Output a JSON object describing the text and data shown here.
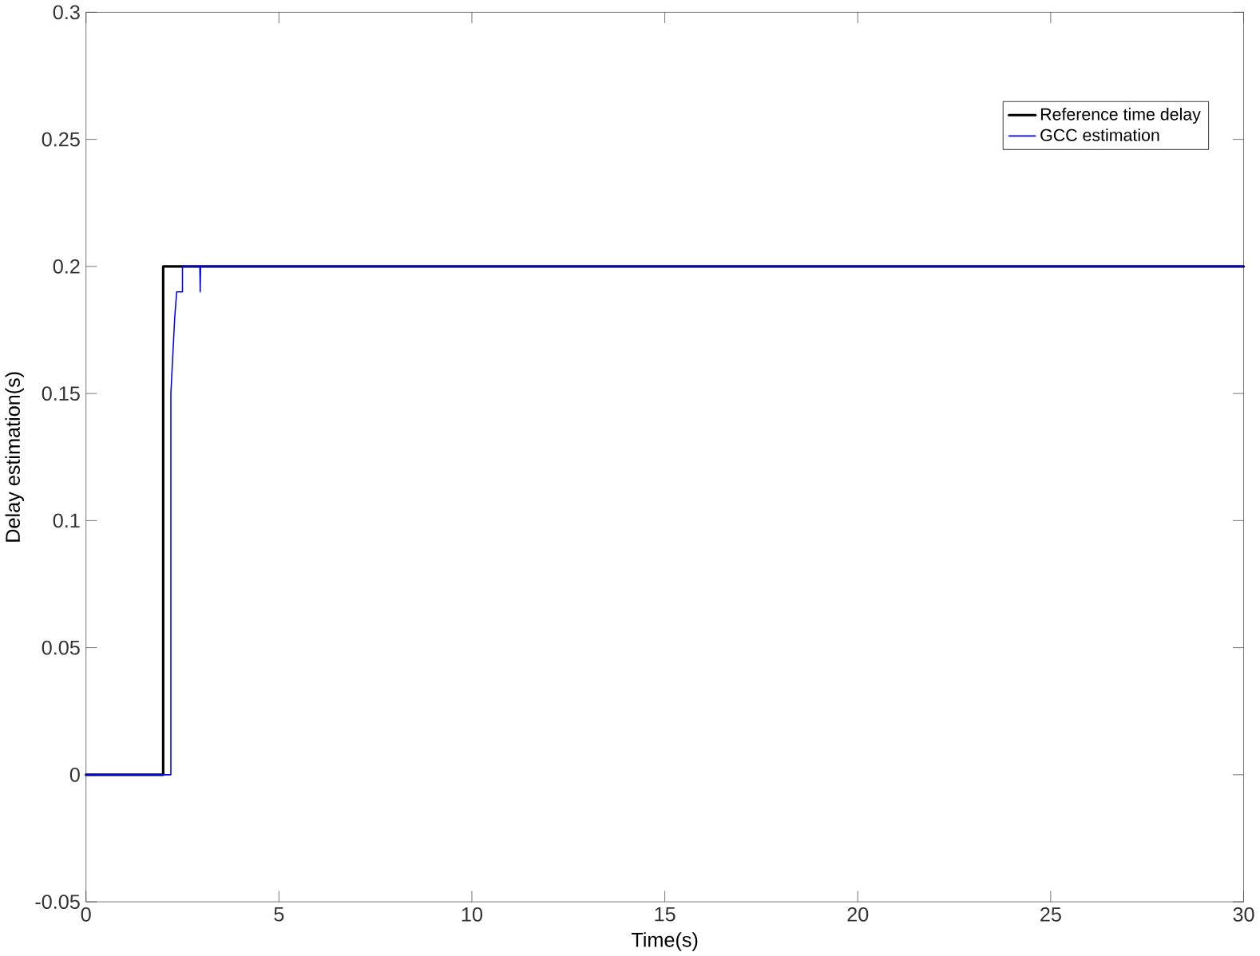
{
  "chart_data": {
    "type": "line",
    "xlabel": "Time(s)",
    "ylabel": "Delay estimation(s)",
    "xlim": [
      0,
      30
    ],
    "ylim": [
      -0.05,
      0.3
    ],
    "xticks": [
      0,
      5,
      10,
      15,
      20,
      25,
      30
    ],
    "yticks": [
      -0.05,
      0,
      0.05,
      0.1,
      0.15,
      0.2,
      0.25,
      0.3
    ],
    "legend": "top right",
    "grid": false,
    "marker": "none",
    "line_style": "solid",
    "series": [
      {
        "name": "Reference time delay",
        "color": "#000000",
        "x": [
          0,
          2,
          2,
          30
        ],
        "values": [
          0,
          0,
          0.2,
          0.2
        ]
      },
      {
        "name": "GCC estimation",
        "color": "#0000ff",
        "x": [
          0,
          2.2,
          2.2,
          2.3,
          2.35,
          2.5,
          2.5,
          2.95,
          2.96,
          2.97,
          30
        ],
        "values": [
          0,
          0,
          0.15,
          0.18,
          0.19,
          0.19,
          0.2,
          0.2,
          0.19,
          0.2,
          0.2
        ]
      }
    ]
  }
}
